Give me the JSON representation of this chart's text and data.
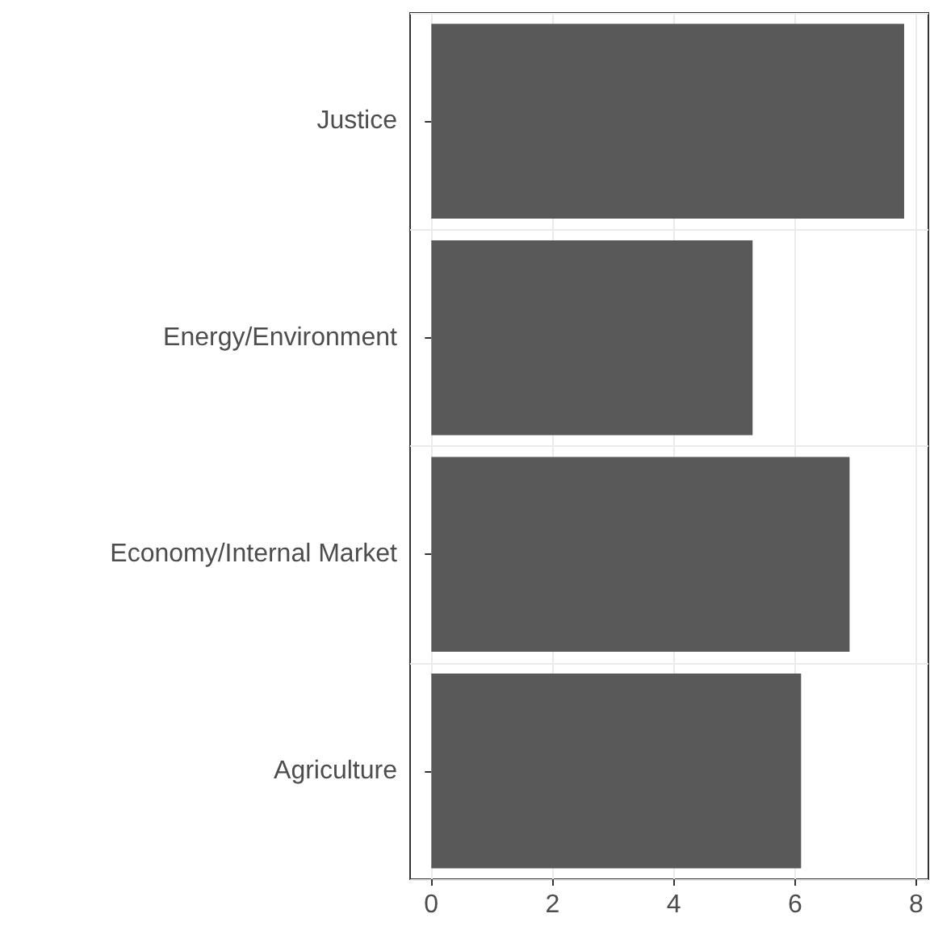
{
  "chart_data": {
    "type": "bar",
    "orientation": "horizontal",
    "categories": [
      "Justice",
      "Energy/Environment",
      "Economy/Internal Market",
      "Agriculture"
    ],
    "values": [
      7.8,
      5.3,
      6.9,
      6.1
    ],
    "color": "#595959",
    "xlim": [
      -0.35,
      8.2
    ],
    "xticks": [
      0,
      2,
      4,
      6,
      8
    ],
    "grid": true
  }
}
